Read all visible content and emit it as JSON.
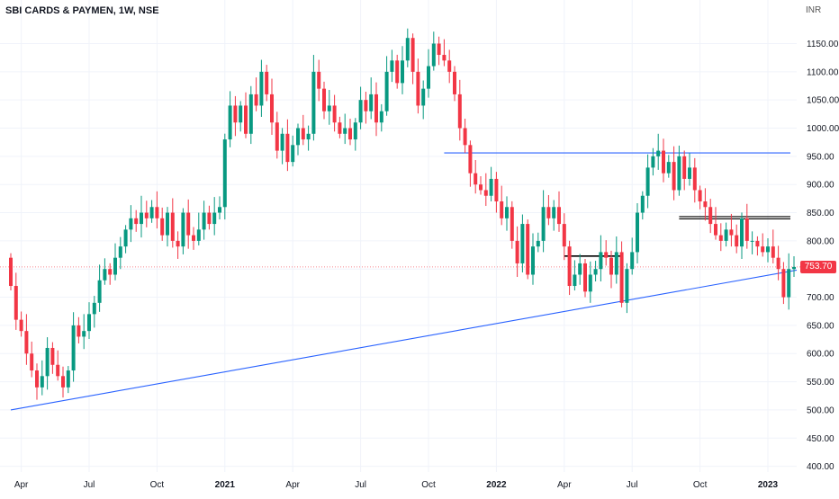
{
  "chart_data": {
    "type": "candlestick",
    "title": "SBI CARDS & PAYMEN, 1W, NSE",
    "currency": "INR",
    "last_price": "753.70",
    "y_ticks": [
      "1150.00",
      "1100.00",
      "1050.00",
      "1000.00",
      "950.00",
      "900.00",
      "850.00",
      "800.00",
      "750.00",
      "700.00",
      "650.00",
      "600.00",
      "550.00",
      "500.00",
      "450.00",
      "400.00"
    ],
    "y_tick_values": [
      1150,
      1100,
      1050,
      1000,
      950,
      900,
      850,
      800,
      750,
      700,
      650,
      600,
      550,
      500,
      450,
      400
    ],
    "x_labels": [
      {
        "label": "Apr",
        "week": 2
      },
      {
        "label": "Jul",
        "week": 15
      },
      {
        "label": "Oct",
        "week": 28
      },
      {
        "label": "2021",
        "week": 41,
        "bold": true
      },
      {
        "label": "Apr",
        "week": 54
      },
      {
        "label": "Jul",
        "week": 67
      },
      {
        "label": "Oct",
        "week": 80
      },
      {
        "label": "2022",
        "week": 93,
        "bold": true
      },
      {
        "label": "Apr",
        "week": 106
      },
      {
        "label": "Jul",
        "week": 119
      },
      {
        "label": "Oct",
        "week": 132
      },
      {
        "label": "2023",
        "week": 145,
        "bold": true
      }
    ],
    "colors": {
      "up": "#089981",
      "down": "#f23645",
      "trendline": "#2962ff",
      "level": "#000000",
      "price_line": "#f23645"
    },
    "closes": [
      720,
      660,
      640,
      600,
      570,
      540,
      560,
      610,
      580,
      560,
      540,
      570,
      650,
      630,
      640,
      670,
      690,
      730,
      750,
      740,
      770,
      790,
      820,
      840,
      830,
      850,
      840,
      860,
      840,
      810,
      850,
      800,
      790,
      850,
      810,
      800,
      820,
      850,
      830,
      850,
      860,
      980,
      1040,
      1010,
      1040,
      990,
      1060,
      1040,
      1100,
      1060,
      1010,
      960,
      990,
      940,
      970,
      1000,
      980,
      990,
      1100,
      1070,
      1030,
      1040,
      1010,
      990,
      1000,
      980,
      1010,
      1050,
      1030,
      1060,
      1010,
      1030,
      1100,
      1120,
      1080,
      1120,
      1160,
      1100,
      1040,
      1070,
      1110,
      1150,
      1130,
      1120,
      1100,
      1060,
      1000,
      970,
      920,
      900,
      890,
      880,
      910,
      870,
      840,
      860,
      800,
      760,
      830,
      740,
      790,
      800,
      860,
      840,
      860,
      830,
      790,
      720,
      740,
      760,
      710,
      740,
      750,
      780,
      770,
      740,
      780,
      690,
      750,
      780,
      850,
      880,
      930,
      950,
      960,
      920,
      940,
      890,
      950,
      910,
      930,
      890,
      870,
      860,
      830,
      810,
      800,
      820,
      810,
      790,
      840,
      800,
      800,
      790,
      780,
      790,
      770,
      750,
      700,
      750,
      753.7
    ]
  }
}
